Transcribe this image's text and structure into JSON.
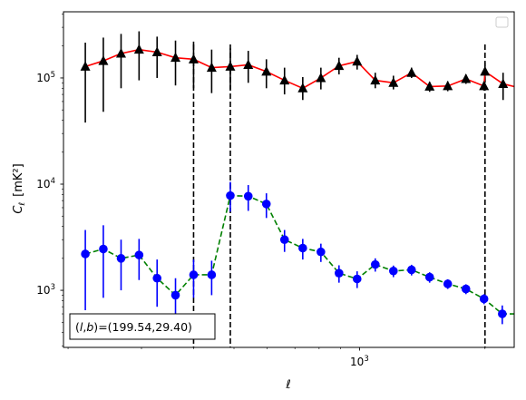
{
  "chart_data": {
    "type": "scatter",
    "xscale": "log",
    "yscale": "log",
    "xlim": [
      195,
      2350
    ],
    "ylim": [
      290,
      420000
    ],
    "xlabel": "ℓ",
    "ylabel_main": "C",
    "ylabel_sub": "ℓ",
    "ylabel_unit": "[mK²]",
    "x_major_ticks": [
      {
        "value": 1000,
        "label": "10",
        "exp": "3"
      }
    ],
    "y_major_ticks": [
      {
        "value": 1000,
        "label": "10",
        "exp": "3"
      },
      {
        "value": 10000,
        "label": "10",
        "exp": "4"
      },
      {
        "value": 100000,
        "label": "10",
        "exp": "5"
      }
    ],
    "legend": {
      "location": "top-right",
      "entries": []
    },
    "annotation": {
      "text": "(l, b)=(199.54,29.40)",
      "math_open": "(",
      "math_l": "l",
      "math_comma": ",",
      "math_b": "b",
      "math_close": ")",
      "value_text": "=(199.54,29.40)",
      "location": "bottom-left"
    },
    "vlines": [
      400,
      490,
      2000
    ],
    "series": [
      {
        "marker": "triangle",
        "marker_color": "#000000",
        "errorbar_color": "#000000",
        "line_color": "#ff0000",
        "line_style": "solid",
        "points": [
          {
            "x": 220,
            "y": 128000,
            "ylo": 38000,
            "yhi": 215000
          },
          {
            "x": 243,
            "y": 145000,
            "ylo": 48000,
            "yhi": 240000
          },
          {
            "x": 268,
            "y": 170000,
            "ylo": 80000,
            "yhi": 260000
          },
          {
            "x": 296,
            "y": 185000,
            "ylo": 95000,
            "yhi": 275000
          },
          {
            "x": 327,
            "y": 175000,
            "ylo": 100000,
            "yhi": 245000
          },
          {
            "x": 362,
            "y": 155000,
            "ylo": 85000,
            "yhi": 225000
          },
          {
            "x": 400,
            "y": 150000,
            "ylo": 80000,
            "yhi": 220000
          },
          {
            "x": 442,
            "y": 125000,
            "ylo": 72000,
            "yhi": 185000
          },
          {
            "x": 490,
            "y": 128000,
            "ylo": 78000,
            "yhi": 190000
          },
          {
            "x": 541,
            "y": 133000,
            "ylo": 90000,
            "yhi": 180000
          },
          {
            "x": 598,
            "y": 115000,
            "ylo": 80000,
            "yhi": 150000
          },
          {
            "x": 661,
            "y": 95000,
            "ylo": 70000,
            "yhi": 125000
          },
          {
            "x": 731,
            "y": 80000,
            "ylo": 62000,
            "yhi": 102000
          },
          {
            "x": 808,
            "y": 100000,
            "ylo": 78000,
            "yhi": 125000
          },
          {
            "x": 893,
            "y": 130000,
            "ylo": 108000,
            "yhi": 155000
          },
          {
            "x": 987,
            "y": 143000,
            "ylo": 120000,
            "yhi": 165000
          },
          {
            "x": 1091,
            "y": 95000,
            "ylo": 80000,
            "yhi": 112000
          },
          {
            "x": 1206,
            "y": 90000,
            "ylo": 78000,
            "yhi": 105000
          },
          {
            "x": 1333,
            "y": 112000,
            "ylo": 100000,
            "yhi": 125000
          },
          {
            "x": 1473,
            "y": 83000,
            "ylo": 74000,
            "yhi": 92000
          },
          {
            "x": 1628,
            "y": 84000,
            "ylo": 75000,
            "yhi": 93000
          },
          {
            "x": 1800,
            "y": 98000,
            "ylo": 88000,
            "yhi": 108000
          },
          {
            "x": 1989,
            "y": 84000,
            "ylo": 76000,
            "yhi": 92000
          },
          {
            "x": 2000,
            "y": 115000,
            "ylo": 90000,
            "yhi": 140000
          },
          {
            "x": 2210,
            "y": 88000,
            "ylo": 62000,
            "yhi": 112000
          },
          {
            "x": 2440,
            "y": 80000,
            "ylo": 55000,
            "yhi": 105000
          }
        ]
      },
      {
        "marker": "circle",
        "marker_color": "#0000ff",
        "errorbar_color": "#0000ff",
        "line_color": "#008000",
        "line_style": "dashed",
        "points": [
          {
            "x": 220,
            "y": 2200,
            "ylo": 650,
            "yhi": 3700
          },
          {
            "x": 243,
            "y": 2450,
            "ylo": 850,
            "yhi": 4100
          },
          {
            "x": 268,
            "y": 2000,
            "ylo": 1000,
            "yhi": 3000
          },
          {
            "x": 296,
            "y": 2150,
            "ylo": 1250,
            "yhi": 3050
          },
          {
            "x": 327,
            "y": 1300,
            "ylo": 700,
            "yhi": 1950
          },
          {
            "x": 362,
            "y": 900,
            "ylo": 500,
            "yhi": 1300
          },
          {
            "x": 400,
            "y": 1400,
            "ylo": 850,
            "yhi": 1950
          },
          {
            "x": 442,
            "y": 1400,
            "ylo": 900,
            "yhi": 1900
          },
          {
            "x": 490,
            "y": 7800,
            "ylo": 5500,
            "yhi": 10500
          },
          {
            "x": 541,
            "y": 7700,
            "ylo": 5600,
            "yhi": 9800
          },
          {
            "x": 598,
            "y": 6500,
            "ylo": 4800,
            "yhi": 8200
          },
          {
            "x": 661,
            "y": 3000,
            "ylo": 2300,
            "yhi": 3700
          },
          {
            "x": 731,
            "y": 2500,
            "ylo": 1950,
            "yhi": 3050
          },
          {
            "x": 808,
            "y": 2300,
            "ylo": 1850,
            "yhi": 2750
          },
          {
            "x": 893,
            "y": 1450,
            "ylo": 1180,
            "yhi": 1720
          },
          {
            "x": 987,
            "y": 1280,
            "ylo": 1050,
            "yhi": 1510
          },
          {
            "x": 1091,
            "y": 1750,
            "ylo": 1500,
            "yhi": 2000
          },
          {
            "x": 1206,
            "y": 1520,
            "ylo": 1330,
            "yhi": 1710
          },
          {
            "x": 1333,
            "y": 1560,
            "ylo": 1380,
            "yhi": 1740
          },
          {
            "x": 1473,
            "y": 1330,
            "ylo": 1180,
            "yhi": 1480
          },
          {
            "x": 1628,
            "y": 1150,
            "ylo": 1030,
            "yhi": 1270
          },
          {
            "x": 1800,
            "y": 1030,
            "ylo": 920,
            "yhi": 1140
          },
          {
            "x": 1989,
            "y": 830,
            "ylo": 740,
            "yhi": 920
          },
          {
            "x": 2200,
            "y": 600,
            "ylo": 480,
            "yhi": 720
          },
          {
            "x": 2440,
            "y": 600,
            "ylo": 440,
            "yhi": 780
          }
        ]
      }
    ]
  }
}
